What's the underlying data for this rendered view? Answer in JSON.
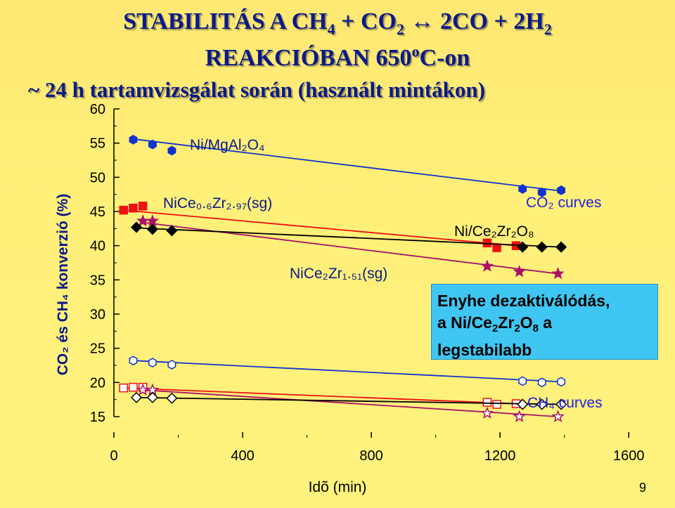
{
  "slide": {
    "title_line1_a": "STABILITÁS A CH",
    "title_line1_b": "4",
    "title_line1_c": " + CO",
    "title_line1_d": "2",
    "title_line1_e": " ↔ 2CO + 2H",
    "title_line1_f": "2",
    "title_line2_a": "REAKCIÓBAN 650",
    "title_line2_b": "o",
    "title_line2_c": "C-on",
    "title_line3": "~ 24 h tartamvizsgálat során (használt mintákon)",
    "box_line1": "Enyhe dezaktiválódás,",
    "box_line2_a": "a Ni/Ce",
    "box_line2_b": "2",
    "box_line2_c": "Zr",
    "box_line2_d": "2",
    "box_line2_e": "O",
    "box_line2_f": "8",
    "box_line2_g": " a",
    "box_line3": "legstabilabb",
    "page_number": "9"
  },
  "chart_data": {
    "type": "scatter",
    "xlabel": "Idõ (min)",
    "ylabel": "CO₂ és CH₄ konverzió (%)",
    "xlim": [
      0,
      1700
    ],
    "ylim": [
      15,
      60
    ],
    "xticks": [
      0,
      400,
      800,
      1200,
      1600
    ],
    "yticks": [
      15,
      20,
      25,
      30,
      35,
      40,
      45,
      50,
      55,
      60
    ],
    "grid": false,
    "annotations": [
      {
        "id": "co2-curves",
        "text": "CO₂ curves",
        "color": "#2222dd"
      },
      {
        "id": "ch4-curves",
        "text": "CH₄ curves",
        "color": "#2222dd"
      },
      {
        "id": "label-ni-mgal2o4",
        "text": "Ni/MgAl₂O₄",
        "color": "#0a1a8a"
      },
      {
        "id": "label-nice06zr297",
        "text": "NiCe₀.₆Zr₂.₉₇(sg)",
        "color": "#0a1a8a"
      },
      {
        "id": "label-nice2zr151",
        "text": "NiCe₂Zr₁.₅₁(sg)",
        "color": "#0a1a8a"
      },
      {
        "id": "label-ni-ce2zr2o8",
        "text": "Ni/Ce₂Zr₂O₈",
        "color": "#000000"
      }
    ],
    "series": [
      {
        "id": "mgal-co2",
        "marker": "hexagon",
        "color": "#1133cc",
        "filled": true,
        "x": [
          60,
          120,
          180,
          1270,
          1330,
          1390
        ],
        "y": [
          55.5,
          54.8,
          53.9,
          48.3,
          47.8,
          48.1
        ],
        "trend": [
          [
            60,
            55.6
          ],
          [
            1390,
            48.0
          ]
        ]
      },
      {
        "id": "nice06-co2",
        "marker": "square",
        "color": "#ee1111",
        "filled": true,
        "x": [
          30,
          60,
          90,
          1160,
          1190,
          1250
        ],
        "y": [
          45.2,
          45.5,
          45.8,
          40.4,
          39.7,
          40.0
        ],
        "trend": [
          [
            30,
            45.2
          ],
          [
            1250,
            40.0
          ]
        ]
      },
      {
        "id": "nice2-co2",
        "marker": "star",
        "color": "#aa1166",
        "filled": true,
        "x": [
          90,
          120,
          1160,
          1260,
          1380
        ],
        "y": [
          43.6,
          43.6,
          37.0,
          36.2,
          35.9
        ],
        "trend": [
          [
            90,
            43.4
          ],
          [
            1380,
            35.9
          ]
        ]
      },
      {
        "id": "cezr-co2",
        "marker": "diamond",
        "color": "#000000",
        "filled": true,
        "x": [
          70,
          120,
          180,
          1270,
          1330,
          1390
        ],
        "y": [
          42.7,
          42.4,
          42.2,
          39.8,
          39.8,
          39.8
        ],
        "trend": [
          [
            70,
            42.6
          ],
          [
            1390,
            39.8
          ]
        ]
      },
      {
        "id": "mgal-ch4",
        "marker": "hexagon",
        "color": "#1133cc",
        "filled": false,
        "x": [
          60,
          120,
          180,
          1270,
          1330,
          1390
        ],
        "y": [
          23.2,
          22.9,
          22.6,
          20.2,
          20.0,
          20.1
        ],
        "trend": [
          [
            60,
            23.2
          ],
          [
            1390,
            20.1
          ]
        ]
      },
      {
        "id": "nice06-ch4",
        "marker": "square",
        "color": "#ee1111",
        "filled": false,
        "x": [
          30,
          60,
          90,
          1160,
          1190,
          1250
        ],
        "y": [
          19.2,
          19.3,
          19.3,
          17.1,
          16.8,
          16.9
        ],
        "trend": [
          [
            30,
            19.2
          ],
          [
            1250,
            16.9
          ]
        ]
      },
      {
        "id": "nice2-ch4",
        "marker": "star",
        "color": "#aa1166",
        "filled": false,
        "x": [
          90,
          120,
          1160,
          1260,
          1380
        ],
        "y": [
          18.9,
          18.9,
          15.5,
          15.0,
          15.0
        ],
        "trend": [
          [
            90,
            18.9
          ],
          [
            1380,
            15.0
          ]
        ]
      },
      {
        "id": "cezr-ch4",
        "marker": "diamond",
        "color": "#000000",
        "filled": false,
        "x": [
          70,
          120,
          180,
          1270,
          1330,
          1390
        ],
        "y": [
          17.8,
          17.8,
          17.7,
          16.8,
          16.8,
          16.8
        ],
        "trend": [
          [
            70,
            17.8
          ],
          [
            1390,
            16.8
          ]
        ]
      }
    ]
  }
}
